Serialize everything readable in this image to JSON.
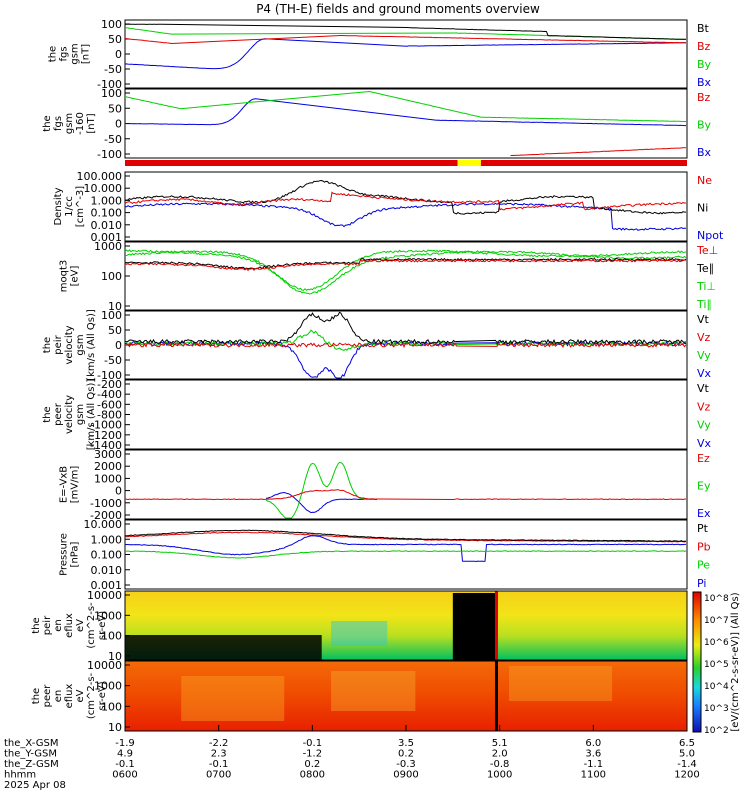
{
  "title": "P4 (TH-E) fields and ground moments overview",
  "colors": {
    "black": "#000000",
    "red": "#e00000",
    "green": "#00d000",
    "blue": "#0000e0",
    "yellow": "#ffff00"
  },
  "chart_data": [
    {
      "type": "line",
      "panel": "fgs_gsm",
      "ylabel": [
        "the",
        "fgs",
        "gsm",
        "[nT]"
      ],
      "yticks": [
        "100",
        "50",
        "0",
        "-50",
        "-100"
      ],
      "ylim": [
        -100,
        100
      ],
      "legend": [
        {
          "name": "Bt",
          "color": "black"
        },
        {
          "name": "Bz",
          "color": "red"
        },
        {
          "name": "By",
          "color": "green"
        },
        {
          "name": "Bx",
          "color": "blue"
        }
      ]
    },
    {
      "type": "line",
      "panel": "fgs_gsm_zoom",
      "ylabel": [
        "the",
        "fgs",
        "gsm",
        "-160",
        "[nT]"
      ],
      "yticks": [
        "100",
        "50",
        "0",
        "-50",
        "-100"
      ],
      "ylim": [
        -130,
        130
      ],
      "legend": [
        {
          "name": "Bz",
          "color": "red"
        },
        {
          "name": "By",
          "color": "green"
        },
        {
          "name": "Bx",
          "color": "blue"
        }
      ]
    },
    {
      "type": "bar",
      "panel": "mode_bar",
      "segments": [
        {
          "from": "0600",
          "to": "0933",
          "color": "red"
        },
        {
          "from": "0933",
          "to": "0948",
          "color": "yellow"
        },
        {
          "from": "0948",
          "to": "1200",
          "color": "red"
        }
      ]
    },
    {
      "type": "line",
      "panel": "density",
      "log": true,
      "ylabel": [
        "Density",
        "1/cc",
        "[cm^-3]"
      ],
      "yticks": [
        "100.000",
        "10.000",
        "1.000",
        "0.100",
        "0.010",
        "0.001"
      ],
      "legend": [
        {
          "name": "Ne",
          "color": "red"
        },
        {
          "name": "Ni",
          "color": "black"
        },
        {
          "name": "Npot",
          "color": "blue"
        }
      ]
    },
    {
      "type": "line",
      "panel": "temperature",
      "log": true,
      "ylabel": [
        "moqt3",
        "[eV]"
      ],
      "yticks": [
        "1000",
        "100",
        "10"
      ],
      "legend": [
        {
          "name": "Te⊥",
          "color": "red"
        },
        {
          "name": "Te∥",
          "color": "black"
        },
        {
          "name": "Ti⊥",
          "color": "green"
        },
        {
          "name": "Ti∥",
          "color": "green"
        }
      ]
    },
    {
      "type": "line",
      "panel": "peir_velocity",
      "ylabel": [
        "the",
        "peir",
        "velocity",
        "gsm",
        "[km/s (All Qs)]"
      ],
      "yticks": [
        "100",
        "50",
        "0",
        "-50",
        "-100"
      ],
      "legend": [
        {
          "name": "Vt",
          "color": "black"
        },
        {
          "name": "Vz",
          "color": "red"
        },
        {
          "name": "Vy",
          "color": "green"
        },
        {
          "name": "Vx",
          "color": "blue"
        }
      ]
    },
    {
      "type": "line",
      "panel": "peer_velocity",
      "ylabel": [
        "the",
        "peer",
        "velocity",
        "gsm",
        "[km/s (All Qs)]"
      ],
      "yticks": [
        "-200",
        "-400",
        "-600",
        "-800",
        "-1000",
        "-1200",
        "-1400"
      ],
      "legend": [
        {
          "name": "Vt",
          "color": "black"
        },
        {
          "name": "Vz",
          "color": "red"
        },
        {
          "name": "Vy",
          "color": "green"
        },
        {
          "name": "Vx",
          "color": "blue"
        }
      ]
    },
    {
      "type": "line",
      "panel": "efield",
      "ylabel": [
        "E=-VxB",
        "[mV/m]"
      ],
      "yticks": [
        "3000",
        "2000",
        "1000",
        "0",
        "-1000",
        "-2000"
      ],
      "legend": [
        {
          "name": "Ez",
          "color": "red"
        },
        {
          "name": "Ey",
          "color": "green"
        },
        {
          "name": "Ex",
          "color": "blue"
        }
      ]
    },
    {
      "type": "line",
      "panel": "pressure",
      "log": true,
      "ylabel": [
        "Pressure",
        "[nPa]"
      ],
      "yticks": [
        "10.000",
        "1.000",
        "0.100",
        "0.010",
        "0.001"
      ],
      "legend": [
        {
          "name": "Pt",
          "color": "black"
        },
        {
          "name": "Pb",
          "color": "red"
        },
        {
          "name": "Pe",
          "color": "green"
        },
        {
          "name": "Pi",
          "color": "blue"
        }
      ]
    },
    {
      "type": "heatmap",
      "panel": "peir_en_eflux",
      "ylabel": [
        "the",
        "peir",
        "en",
        "eflux",
        "eV",
        "(cm^2-s-",
        "sr-eV)"
      ],
      "yticks": [
        "10000",
        "1000",
        "100",
        "10"
      ]
    },
    {
      "type": "heatmap",
      "panel": "peer_en_eflux",
      "ylabel": [
        "the",
        "peer",
        "en",
        "eflux",
        "eV",
        "(cm^2-s-",
        "sr-eV)"
      ],
      "yticks": [
        "10000",
        "1000",
        "100",
        "10"
      ],
      "colorbar": {
        "ticks": [
          "10^8",
          "10^7",
          "10^6",
          "10^5",
          "10^4",
          "10^3",
          "10^2"
        ],
        "label": "[eV/(cm^2-s-sr-eV)] (All Qs)"
      }
    }
  ],
  "xaxis": {
    "rows": [
      {
        "label": "the_X-GSM",
        "values": [
          "-1.9",
          "-2.2",
          "-0.1",
          "3.5",
          "5.1",
          "6.0",
          "6.5"
        ]
      },
      {
        "label": "the_Y-GSM",
        "values": [
          "4.9",
          "2.3",
          "-1.2",
          "0.2",
          "2.0",
          "3.6",
          "5.0"
        ]
      },
      {
        "label": "the_Z-GSM",
        "values": [
          "-0.1",
          "-0.1",
          "0.2",
          "-0.3",
          "-0.8",
          "-1.1",
          "-1.4"
        ]
      },
      {
        "label": "hhmm",
        "values": [
          "0600",
          "0700",
          "0800",
          "0900",
          "1000",
          "1100",
          "1200"
        ]
      }
    ],
    "date": "2025 Apr 08"
  }
}
